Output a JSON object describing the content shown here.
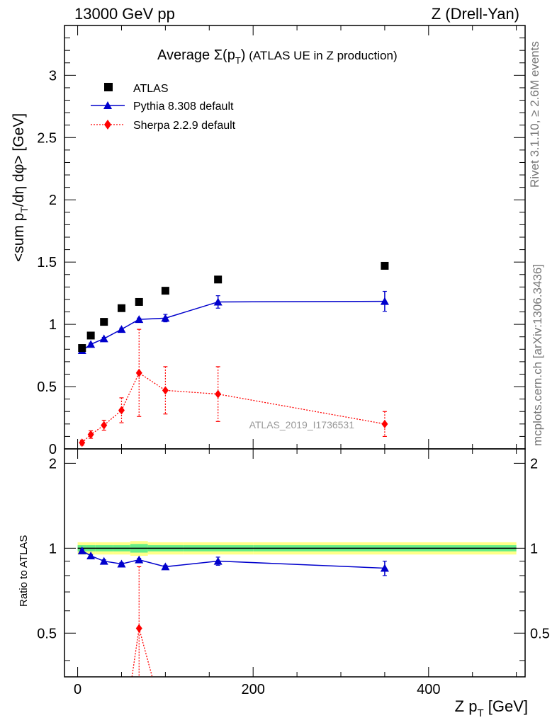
{
  "header": {
    "left": "13000 GeV pp",
    "right": "Z (Drell-Yan)"
  },
  "side_text": {
    "rivet": "Rivet 3.1.10, ≥ 2.6M events",
    "mcplots": "mcplots.cern.ch [arXiv:1306.3436]"
  },
  "watermark": "ATLAS_2019_I1736531",
  "colors": {
    "atlas": "#000000",
    "pythia": "#0000cc",
    "sherpa": "#ff0000",
    "band_outer": "#ffff88",
    "band_inner": "#66ee88"
  },
  "chart_data": [
    {
      "type": "scatter",
      "panel": "main",
      "title": "Average Σ(p_T) (ATLAS UE in Z production)",
      "ylabel": "<sum p_T/dη dφ> [GeV]",
      "xlim": [
        -15,
        510
      ],
      "ylim": [
        0,
        3.4
      ],
      "yticks": [
        0,
        0.5,
        1,
        1.5,
        2,
        2.5,
        3
      ],
      "yticklabels": [
        "0",
        "0.5",
        "1",
        "1.5",
        "2",
        "2.5",
        "3"
      ],
      "legend": "top-left",
      "series": [
        {
          "name": "ATLAS",
          "marker": "square",
          "x": [
            5,
            15,
            30,
            50,
            70,
            100,
            160,
            350
          ],
          "y": [
            0.81,
            0.91,
            1.02,
            1.13,
            1.18,
            1.27,
            1.36,
            1.47
          ]
        },
        {
          "name": "Pythia 8.308 default",
          "marker": "triangle",
          "line": "solid",
          "x": [
            5,
            15,
            30,
            50,
            70,
            100,
            160,
            350
          ],
          "y": [
            0.79,
            0.84,
            0.885,
            0.96,
            1.04,
            1.05,
            1.18,
            1.185
          ],
          "err": [
            0.01,
            0.01,
            0.01,
            0.01,
            0.01,
            0.03,
            0.05,
            0.08
          ]
        },
        {
          "name": "Sherpa 2.2.9 default",
          "marker": "diamond",
          "line": "dotted",
          "x": [
            5,
            15,
            30,
            50,
            70,
            100,
            160,
            350
          ],
          "y": [
            0.05,
            0.115,
            0.19,
            0.31,
            0.61,
            0.47,
            0.44,
            0.2
          ],
          "err": [
            0.02,
            0.03,
            0.04,
            0.1,
            0.35,
            0.19,
            0.22,
            0.1
          ]
        }
      ]
    },
    {
      "type": "scatter",
      "panel": "ratio",
      "ylabel": "Ratio to ATLAS",
      "xlabel": "Z p_T [GeV]",
      "xlim": [
        -15,
        510
      ],
      "ylim": [
        0.35,
        2.25
      ],
      "xticks": [
        0,
        200,
        400
      ],
      "xticklabels": [
        "0",
        "200",
        "400"
      ],
      "yticks": [
        0.5,
        1,
        2
      ],
      "yticklabels": [
        "0.5",
        "1",
        "2"
      ],
      "band": {
        "edges": [
          0,
          10,
          20,
          40,
          60,
          80,
          120,
          200,
          500
        ],
        "outer": [
          0.05,
          0.05,
          0.05,
          0.05,
          0.06,
          0.05,
          0.05,
          0.05
        ],
        "inner": [
          0.025,
          0.025,
          0.025,
          0.025,
          0.035,
          0.025,
          0.025,
          0.025
        ]
      },
      "series": [
        {
          "name": "Pythia 8.308 default",
          "x": [
            5,
            15,
            30,
            50,
            70,
            100,
            160,
            350
          ],
          "y": [
            0.98,
            0.94,
            0.9,
            0.88,
            0.91,
            0.86,
            0.9,
            0.85
          ],
          "err": [
            0.01,
            0.01,
            0.01,
            0.01,
            0.01,
            0.01,
            0.03,
            0.05
          ]
        },
        {
          "name": "Sherpa 2.2.9 default",
          "x": [
            70,
            85
          ],
          "y": [
            0.52,
            0.35
          ],
          "err": [
            0.34,
            0
          ]
        }
      ]
    }
  ]
}
